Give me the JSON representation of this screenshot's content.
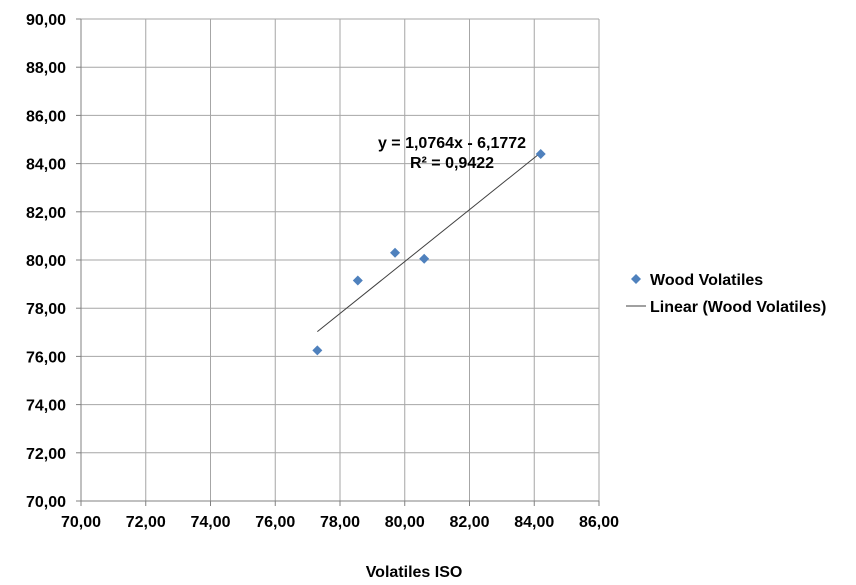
{
  "chart_data": {
    "type": "scatter",
    "title": "",
    "xlabel": "Volatiles ISO",
    "ylabel": "",
    "xlim": [
      70,
      86
    ],
    "ylim": [
      70,
      90
    ],
    "x_ticks": [
      70,
      72,
      74,
      76,
      78,
      80,
      82,
      84,
      86
    ],
    "y_ticks": [
      70,
      72,
      74,
      76,
      78,
      80,
      82,
      84,
      86,
      88,
      90
    ],
    "x_tick_labels": [
      "70,00",
      "72,00",
      "74,00",
      "76,00",
      "78,00",
      "80,00",
      "82,00",
      "84,00",
      "86,00"
    ],
    "y_tick_labels": [
      "70,00",
      "72,00",
      "74,00",
      "76,00",
      "78,00",
      "80,00",
      "82,00",
      "84,00",
      "86,00",
      "88,00",
      "90,00"
    ],
    "grid": true,
    "legend_position": "right",
    "series": [
      {
        "name": "Wood Volatiles",
        "marker": "diamond",
        "color": "#4f81bd",
        "x": [
          77.3,
          78.55,
          79.7,
          80.6,
          84.2
        ],
        "y": [
          76.25,
          79.15,
          80.3,
          80.05,
          84.4
        ]
      }
    ],
    "trendline": {
      "name": "Linear (Wood Volatiles)",
      "type": "linear",
      "slope": 1.0764,
      "intercept": -6.1772,
      "x_range": [
        77.3,
        84.2
      ],
      "color": "#404040",
      "equation": "y = 1,0764x - 6,1772",
      "r_squared": "R² = 0,9422"
    }
  }
}
